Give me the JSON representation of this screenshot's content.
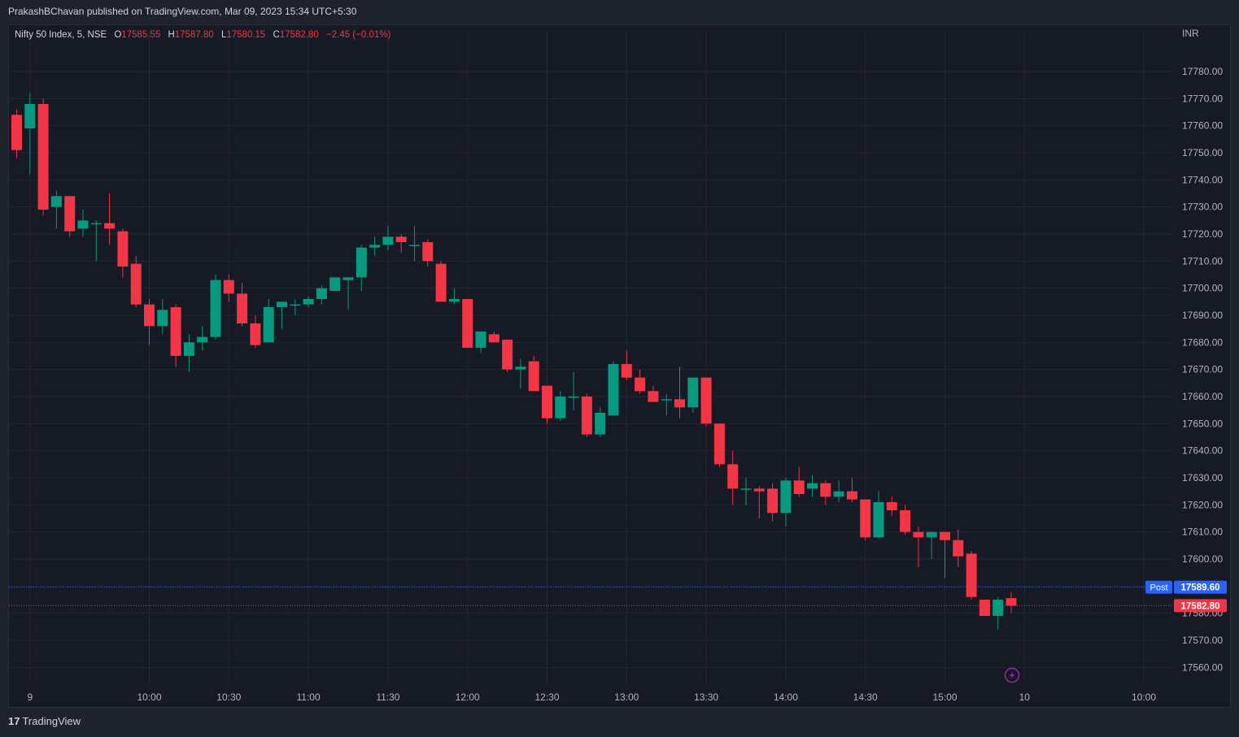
{
  "header": {
    "published": "PrakashBChavan published on TradingView.com, Mar 09, 2023 15:34 UTC+5:30"
  },
  "footer": {
    "logo": "17",
    "brand": "TradingView"
  },
  "colors": {
    "up": "#089981",
    "down": "#f23645",
    "background": "#161a25",
    "grid": "#232733",
    "text": "#b2b5be",
    "post": "#2962ff"
  },
  "chart_data": {
    "type": "candlestick",
    "symbol": "Nifty 50 Index, 5, NSE",
    "ohlc_readout": {
      "o_label": "O",
      "o": "17585.55",
      "h_label": "H",
      "h": "17587.80",
      "l_label": "L",
      "l": "17580.15",
      "c_label": "C",
      "c": "17582.80",
      "change": "−2.45 (−0.01%)"
    },
    "currency": "INR",
    "ylim": [
      17555,
      17792
    ],
    "y_ticks": [
      "17560.00",
      "17570.00",
      "17580.00",
      "17590.00",
      "17600.00",
      "17610.00",
      "17620.00",
      "17630.00",
      "17640.00",
      "17650.00",
      "17660.00",
      "17670.00",
      "17680.00",
      "17690.00",
      "17700.00",
      "17710.00",
      "17720.00",
      "17730.00",
      "17740.00",
      "17750.00",
      "17760.00",
      "17770.00",
      "17780.00"
    ],
    "x_ticks": [
      {
        "label": "9",
        "slot": 1
      },
      {
        "label": "10:00",
        "slot": 10
      },
      {
        "label": "10:30",
        "slot": 16
      },
      {
        "label": "11:00",
        "slot": 22
      },
      {
        "label": "11:30",
        "slot": 28
      },
      {
        "label": "12:00",
        "slot": 34
      },
      {
        "label": "12:30",
        "slot": 40
      },
      {
        "label": "13:00",
        "slot": 46
      },
      {
        "label": "13:30",
        "slot": 52
      },
      {
        "label": "14:00",
        "slot": 58
      },
      {
        "label": "14:30",
        "slot": 64
      },
      {
        "label": "15:00",
        "slot": 70
      },
      {
        "label": "10",
        "slot": 76
      },
      {
        "label": "10:00",
        "slot": 85
      }
    ],
    "candles": [
      {
        "o": 17764,
        "h": 17766,
        "l": 17748,
        "c": 17751
      },
      {
        "o": 17759,
        "h": 17772,
        "l": 17742,
        "c": 17768
      },
      {
        "o": 17768,
        "h": 17770,
        "l": 17727,
        "c": 17729
      },
      {
        "o": 17730,
        "h": 17736,
        "l": 17722,
        "c": 17734
      },
      {
        "o": 17734,
        "h": 17734,
        "l": 17719,
        "c": 17721
      },
      {
        "o": 17722,
        "h": 17729,
        "l": 17719,
        "c": 17725
      },
      {
        "o": 17724,
        "h": 17725,
        "l": 17710,
        "c": 17724
      },
      {
        "o": 17724,
        "h": 17735,
        "l": 17716,
        "c": 17722
      },
      {
        "o": 17721,
        "h": 17722,
        "l": 17704,
        "c": 17708
      },
      {
        "o": 17709,
        "h": 17712,
        "l": 17693,
        "c": 17694
      },
      {
        "o": 17694,
        "h": 17696,
        "l": 17679,
        "c": 17686
      },
      {
        "o": 17686,
        "h": 17696,
        "l": 17683,
        "c": 17692
      },
      {
        "o": 17693,
        "h": 17694,
        "l": 17671,
        "c": 17675
      },
      {
        "o": 17675,
        "h": 17683,
        "l": 17669,
        "c": 17680
      },
      {
        "o": 17680,
        "h": 17686,
        "l": 17677,
        "c": 17682
      },
      {
        "o": 17682,
        "h": 17705,
        "l": 17681,
        "c": 17703
      },
      {
        "o": 17703,
        "h": 17705,
        "l": 17695,
        "c": 17698
      },
      {
        "o": 17698,
        "h": 17702,
        "l": 17686,
        "c": 17687
      },
      {
        "o": 17687,
        "h": 17690,
        "l": 17678,
        "c": 17679
      },
      {
        "o": 17680,
        "h": 17696,
        "l": 17680,
        "c": 17693
      },
      {
        "o": 17693,
        "h": 17695,
        "l": 17685,
        "c": 17695
      },
      {
        "o": 17694,
        "h": 17696,
        "l": 17690,
        "c": 17694
      },
      {
        "o": 17694,
        "h": 17697,
        "l": 17693,
        "c": 17696
      },
      {
        "o": 17696,
        "h": 17701,
        "l": 17694,
        "c": 17700
      },
      {
        "o": 17699,
        "h": 17704,
        "l": 17699,
        "c": 17704
      },
      {
        "o": 17703,
        "h": 17704,
        "l": 17692,
        "c": 17704
      },
      {
        "o": 17704,
        "h": 17716,
        "l": 17699,
        "c": 17715
      },
      {
        "o": 17715,
        "h": 17719,
        "l": 17712,
        "c": 17716
      },
      {
        "o": 17716,
        "h": 17723,
        "l": 17714,
        "c": 17719
      },
      {
        "o": 17719,
        "h": 17720,
        "l": 17713,
        "c": 17717
      },
      {
        "o": 17716,
        "h": 17723,
        "l": 17710,
        "c": 17716
      },
      {
        "o": 17717,
        "h": 17718,
        "l": 17708,
        "c": 17710
      },
      {
        "o": 17709,
        "h": 17710,
        "l": 17695,
        "c": 17695
      },
      {
        "o": 17695,
        "h": 17700,
        "l": 17694,
        "c": 17696
      },
      {
        "o": 17696,
        "h": 17696,
        "l": 17678,
        "c": 17678
      },
      {
        "o": 17678,
        "h": 17684,
        "l": 17676,
        "c": 17684
      },
      {
        "o": 17683,
        "h": 17684,
        "l": 17680,
        "c": 17680
      },
      {
        "o": 17681,
        "h": 17681,
        "l": 17669,
        "c": 17670
      },
      {
        "o": 17670,
        "h": 17674,
        "l": 17663,
        "c": 17671
      },
      {
        "o": 17673,
        "h": 17675,
        "l": 17662,
        "c": 17662
      },
      {
        "o": 17664,
        "h": 17664,
        "l": 17650,
        "c": 17652
      },
      {
        "o": 17652,
        "h": 17662,
        "l": 17651,
        "c": 17660
      },
      {
        "o": 17660,
        "h": 17669,
        "l": 17655,
        "c": 17660
      },
      {
        "o": 17660,
        "h": 17661,
        "l": 17645,
        "c": 17646
      },
      {
        "o": 17646,
        "h": 17656,
        "l": 17645,
        "c": 17654
      },
      {
        "o": 17653,
        "h": 17673,
        "l": 17653,
        "c": 17672
      },
      {
        "o": 17672,
        "h": 17677,
        "l": 17666,
        "c": 17667
      },
      {
        "o": 17667,
        "h": 17670,
        "l": 17661,
        "c": 17662
      },
      {
        "o": 17662,
        "h": 17664,
        "l": 17658,
        "c": 17658
      },
      {
        "o": 17659,
        "h": 17661,
        "l": 17653,
        "c": 17659
      },
      {
        "o": 17659,
        "h": 17671,
        "l": 17652,
        "c": 17656
      },
      {
        "o": 17656,
        "h": 17667,
        "l": 17654,
        "c": 17667
      },
      {
        "o": 17667,
        "h": 17667,
        "l": 17649,
        "c": 17650
      },
      {
        "o": 17650,
        "h": 17650,
        "l": 17634,
        "c": 17635
      },
      {
        "o": 17635,
        "h": 17640,
        "l": 17620,
        "c": 17626
      },
      {
        "o": 17626,
        "h": 17630,
        "l": 17620,
        "c": 17626
      },
      {
        "o": 17626,
        "h": 17627,
        "l": 17615,
        "c": 17625
      },
      {
        "o": 17626,
        "h": 17628,
        "l": 17614,
        "c": 17617
      },
      {
        "o": 17617,
        "h": 17630,
        "l": 17612,
        "c": 17629
      },
      {
        "o": 17629,
        "h": 17634,
        "l": 17623,
        "c": 17624
      },
      {
        "o": 17626,
        "h": 17631,
        "l": 17623,
        "c": 17628
      },
      {
        "o": 17628,
        "h": 17629,
        "l": 17620,
        "c": 17623
      },
      {
        "o": 17623,
        "h": 17629,
        "l": 17621,
        "c": 17625
      },
      {
        "o": 17625,
        "h": 17630,
        "l": 17621,
        "c": 17622
      },
      {
        "o": 17622,
        "h": 17622,
        "l": 17607,
        "c": 17608
      },
      {
        "o": 17608,
        "h": 17625,
        "l": 17608,
        "c": 17621
      },
      {
        "o": 17621,
        "h": 17623,
        "l": 17616,
        "c": 17618
      },
      {
        "o": 17618,
        "h": 17620,
        "l": 17609,
        "c": 17610
      },
      {
        "o": 17610,
        "h": 17612,
        "l": 17597,
        "c": 17608
      },
      {
        "o": 17608,
        "h": 17610,
        "l": 17600,
        "c": 17610
      },
      {
        "o": 17610,
        "h": 17610,
        "l": 17593,
        "c": 17607
      },
      {
        "o": 17607,
        "h": 17611,
        "l": 17597,
        "c": 17601
      },
      {
        "o": 17602,
        "h": 17603,
        "l": 17585,
        "c": 17586
      },
      {
        "o": 17585,
        "h": 17585,
        "l": 17579,
        "c": 17579
      },
      {
        "o": 17579,
        "h": 17586,
        "l": 17574,
        "c": 17585
      },
      {
        "o": 17585.55,
        "h": 17587.8,
        "l": 17580.15,
        "c": 17582.8
      }
    ],
    "post_marker": {
      "label": "Post",
      "value_text": "17589.60",
      "value": 17589.6
    },
    "last_price": {
      "value_text": "17582.80",
      "value": 17582.8
    }
  }
}
